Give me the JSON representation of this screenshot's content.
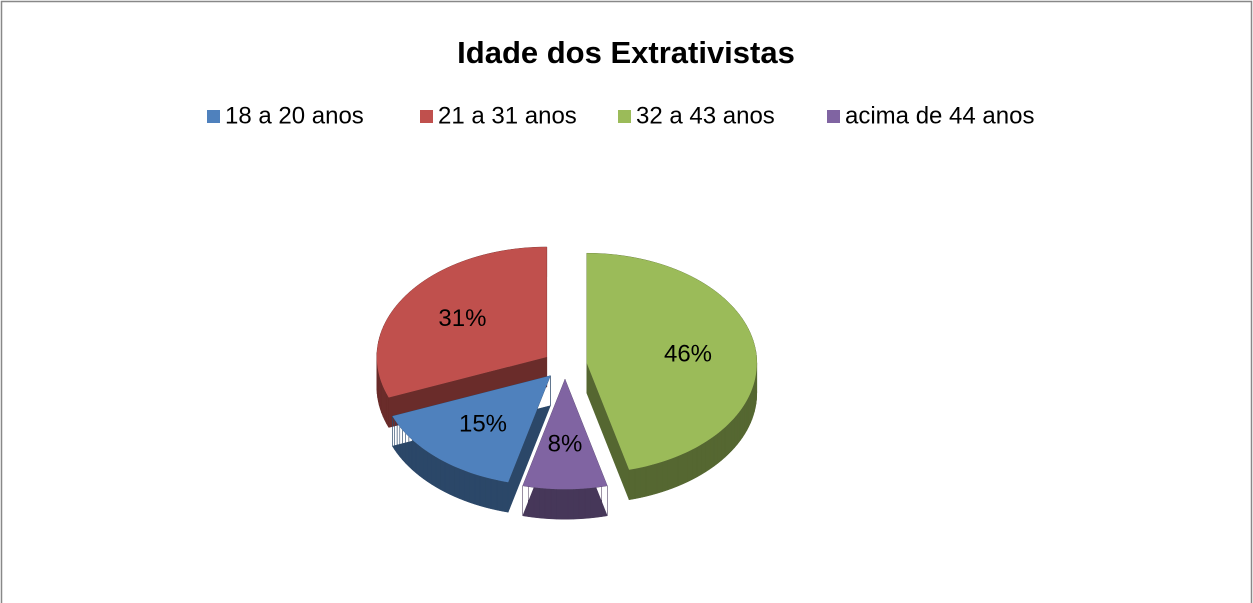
{
  "chart_data": {
    "type": "pie",
    "title": "Idade dos Extrativistas",
    "categories": [
      "18 a 20 anos",
      "21 a 31 anos",
      "32 a 43 anos",
      "acima de 44 anos"
    ],
    "values": [
      15,
      31,
      46,
      8
    ],
    "value_labels": [
      "15%",
      "31%",
      "46%",
      "8%"
    ],
    "colors": [
      "#4f81bd",
      "#c0504d",
      "#9bbb59",
      "#8064a2"
    ],
    "legend": "top"
  }
}
